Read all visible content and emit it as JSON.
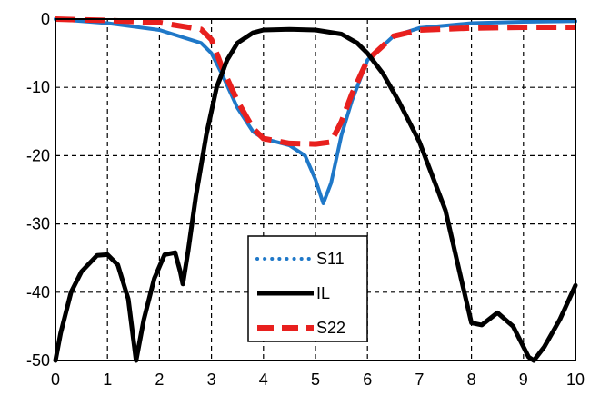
{
  "chart_data": {
    "type": "line",
    "xlim": [
      0,
      10
    ],
    "ylim": [
      -50,
      0
    ],
    "x_ticks": [
      "0",
      "1",
      "2",
      "3",
      "4",
      "5",
      "6",
      "7",
      "8",
      "9",
      "10"
    ],
    "y_ticks": [
      "0",
      "-10",
      "-20",
      "-30",
      "-40",
      "-50"
    ],
    "grid": true,
    "legend_position": "bottom-center",
    "series": [
      {
        "name": "S11",
        "color": "#1f78c8",
        "style": "dotted",
        "points": [
          [
            0,
            0
          ],
          [
            1,
            -0.6
          ],
          [
            2,
            -1.6
          ],
          [
            2.8,
            -3.5
          ],
          [
            3,
            -5
          ],
          [
            3.2,
            -8
          ],
          [
            3.5,
            -13
          ],
          [
            3.8,
            -16.5
          ],
          [
            4,
            -17.5
          ],
          [
            4.5,
            -18.5
          ],
          [
            4.8,
            -20
          ],
          [
            5,
            -23.5
          ],
          [
            5.15,
            -27
          ],
          [
            5.3,
            -24
          ],
          [
            5.5,
            -17
          ],
          [
            5.7,
            -12
          ],
          [
            6,
            -6
          ],
          [
            6.5,
            -2.5
          ],
          [
            7,
            -1.3
          ],
          [
            8,
            -0.6
          ],
          [
            9,
            -0.4
          ],
          [
            10,
            -0.3
          ]
        ]
      },
      {
        "name": "IL",
        "color": "#000000",
        "style": "solid",
        "points": [
          [
            0,
            -50
          ],
          [
            0.1,
            -46
          ],
          [
            0.3,
            -40
          ],
          [
            0.5,
            -37
          ],
          [
            0.8,
            -34.6
          ],
          [
            1,
            -34.5
          ],
          [
            1.2,
            -36
          ],
          [
            1.4,
            -41
          ],
          [
            1.55,
            -50
          ],
          [
            1.7,
            -44
          ],
          [
            1.9,
            -38
          ],
          [
            2.1,
            -34.5
          ],
          [
            2.3,
            -34.2
          ],
          [
            2.4,
            -37
          ],
          [
            2.45,
            -38.8
          ],
          [
            2.55,
            -34
          ],
          [
            2.7,
            -26
          ],
          [
            2.9,
            -17
          ],
          [
            3.1,
            -10
          ],
          [
            3.3,
            -6
          ],
          [
            3.5,
            -3.5
          ],
          [
            3.8,
            -2
          ],
          [
            4,
            -1.6
          ],
          [
            4.5,
            -1.5
          ],
          [
            5,
            -1.6
          ],
          [
            5.5,
            -2.2
          ],
          [
            5.8,
            -3.5
          ],
          [
            6,
            -5
          ],
          [
            6.3,
            -8
          ],
          [
            6.6,
            -12
          ],
          [
            7,
            -18
          ],
          [
            7.5,
            -28
          ],
          [
            7.8,
            -38
          ],
          [
            8,
            -44.5
          ],
          [
            8.2,
            -44.8
          ],
          [
            8.5,
            -43
          ],
          [
            8.8,
            -45
          ],
          [
            9.1,
            -49.5
          ],
          [
            9.2,
            -50
          ],
          [
            9.4,
            -48
          ],
          [
            9.7,
            -44
          ],
          [
            10,
            -39
          ]
        ]
      },
      {
        "name": "S22",
        "color": "#e8201e",
        "style": "dashed",
        "points": [
          [
            0,
            0
          ],
          [
            1,
            -0.2
          ],
          [
            2,
            -0.5
          ],
          [
            2.8,
            -1.5
          ],
          [
            3,
            -3
          ],
          [
            3.2,
            -7
          ],
          [
            3.5,
            -12
          ],
          [
            3.8,
            -16
          ],
          [
            4,
            -17.5
          ],
          [
            4.5,
            -18.2
          ],
          [
            5,
            -18.3
          ],
          [
            5.3,
            -18
          ],
          [
            5.5,
            -15
          ],
          [
            5.7,
            -11
          ],
          [
            6,
            -6
          ],
          [
            6.5,
            -2.5
          ],
          [
            7,
            -1.6
          ],
          [
            8,
            -1.3
          ],
          [
            9,
            -1.2
          ],
          [
            10,
            -1.2
          ]
        ]
      }
    ]
  }
}
